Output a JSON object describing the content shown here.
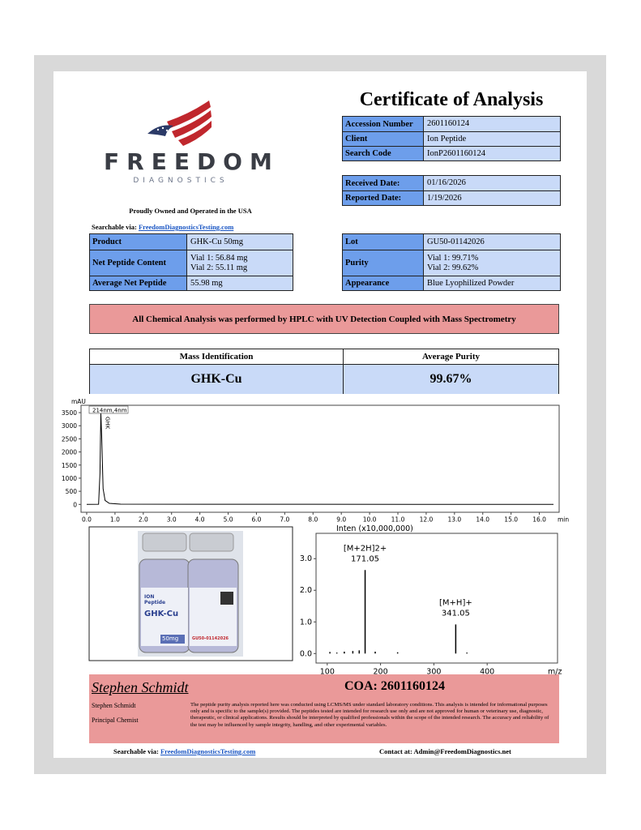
{
  "header": {
    "title": "Certificate of Analysis",
    "brand": "FREEDOM",
    "brand_sub": "DIAGNOSTICS",
    "tagline": "Proudly Owned and Operated in the USA",
    "search_label": "Searchable via:",
    "search_link": "FreedomDiagnosticsTesting.com"
  },
  "sample_info": {
    "rows": [
      {
        "label": "Accession Number",
        "lines": [
          "2601160124"
        ]
      },
      {
        "label": "Client",
        "lines": [
          "Ion Peptide"
        ]
      },
      {
        "label": "Search Code",
        "lines": [
          "IonP2601160124"
        ]
      }
    ]
  },
  "dates": {
    "rows": [
      {
        "label": "Received Date:",
        "lines": [
          "01/16/2026"
        ]
      },
      {
        "label": "Reported Date:",
        "lines": [
          "1/19/2026"
        ]
      }
    ]
  },
  "product": {
    "rows": [
      {
        "label": "Product",
        "lines": [
          "GHK-Cu 50mg"
        ]
      },
      {
        "label": "Net Peptide Content",
        "lines": [
          "Vial 1: 56.84 mg",
          "Vial 2: 55.11 mg"
        ]
      },
      {
        "label": "Average Net Peptide",
        "lines": [
          "55.98 mg"
        ]
      }
    ]
  },
  "lot": {
    "rows": [
      {
        "label": "Lot",
        "lines": [
          "GU50-01142026"
        ]
      },
      {
        "label": "Purity",
        "lines": [
          "Vial 1: 99.71%",
          "Vial 2: 99.62%"
        ]
      },
      {
        "label": "Appearance",
        "lines": [
          "Blue Lyophilized Powder"
        ]
      }
    ]
  },
  "method_banner": "All Chemical Analysis was performed by HPLC with UV Detection Coupled with Mass Spectrometry",
  "summary": {
    "headers": [
      "Mass Identification",
      "Average Purity"
    ],
    "values": [
      "GHK-Cu",
      "99.67%"
    ]
  },
  "chromatogram": {
    "type": "line",
    "y_label": "mAU",
    "x_label": "min",
    "legend": "214nm,4nm",
    "peak_label": "GHK",
    "color": "#000000",
    "x": [
      0,
      0.42,
      0.47,
      0.5,
      0.53,
      0.58,
      0.65,
      0.8,
      1.2,
      5,
      16.5
    ],
    "y": [
      0,
      5,
      1200,
      3500,
      2600,
      600,
      150,
      40,
      10,
      5,
      0
    ],
    "xlim": [
      -0.2,
      16.7
    ],
    "ylim": [
      -300,
      3780
    ],
    "xticks": [
      {
        "value": 0,
        "label": "0.0"
      },
      {
        "value": 1,
        "label": "1.0"
      },
      {
        "value": 2,
        "label": "2.0"
      },
      {
        "value": 3,
        "label": "3.0"
      },
      {
        "value": 4,
        "label": "4.0"
      },
      {
        "value": 5,
        "label": "5.0"
      },
      {
        "value": 6,
        "label": "6.0"
      },
      {
        "value": 7,
        "label": "7.0"
      },
      {
        "value": 8,
        "label": "8.0"
      },
      {
        "value": 9,
        "label": "9.0"
      },
      {
        "value": 10,
        "label": "10.0"
      },
      {
        "value": 11,
        "label": "11.0"
      },
      {
        "value": 12,
        "label": "12.0"
      },
      {
        "value": 13,
        "label": "13.0"
      },
      {
        "value": 14,
        "label": "14.0"
      },
      {
        "value": 15,
        "label": "15.0"
      },
      {
        "value": 16,
        "label": "16.0"
      }
    ],
    "yticks": [
      0,
      500,
      1000,
      1500,
      2000,
      2500,
      3000,
      3500
    ]
  },
  "vial_photo": {
    "brand_top": "ION",
    "brand": "Peptide",
    "product": "GHK-Cu",
    "dose": "50mg",
    "lot": "GU50-01142026"
  },
  "mass_spectrum": {
    "type": "stick",
    "y_label": "Inten (x10,000,000)",
    "x_label": "m/z",
    "color": "#000000",
    "mz": [
      105,
      118,
      132,
      148,
      160,
      171.05,
      190,
      232,
      341.05,
      362
    ],
    "intensity": [
      0.05,
      0.03,
      0.06,
      0.08,
      0.1,
      2.64,
      0.06,
      0.04,
      0.92,
      0.03
    ],
    "xlim": [
      79,
      532
    ],
    "ylim": [
      -0.3,
      3.8
    ],
    "xticks": [
      100,
      200,
      300,
      400
    ],
    "yticks": [
      {
        "value": 0,
        "label": "0.0"
      },
      {
        "value": 1,
        "label": "1.0"
      },
      {
        "value": 2,
        "label": "2.0"
      },
      {
        "value": 3,
        "label": "3.0"
      }
    ],
    "annotations": [
      {
        "text": "[M+2H]2+",
        "mz": 171.05
      },
      {
        "text": "[M+H]+",
        "mz": 341.05
      }
    ]
  },
  "footer": {
    "signature": "Stephen Schmidt",
    "name": "Stephen Schmidt",
    "role": "Principal Chemist",
    "coa": "COA: 2601160124",
    "disclaimer": "The peptide purity analysis reported here was conducted using LCMS/MS under standard laboratory conditions. This analysis is intended for informational purposes only and is specific to the sample(s) provided. The peptides tested are intended for research use only and are not approved for human or veterinary use, diagnostic, therapeutic, or clinical applications. Results should be interpreted by qualified professionals within the scope of the intended research. The accuracy and reliability of the test may be influenced by sample integrity, handling, and other experimental variables.",
    "search_label": "Searchable via:",
    "search_link": "FreedomDiagnosticsTesting.com",
    "contact": "Contact at: Admin@FreedomDiagnostics.net"
  }
}
